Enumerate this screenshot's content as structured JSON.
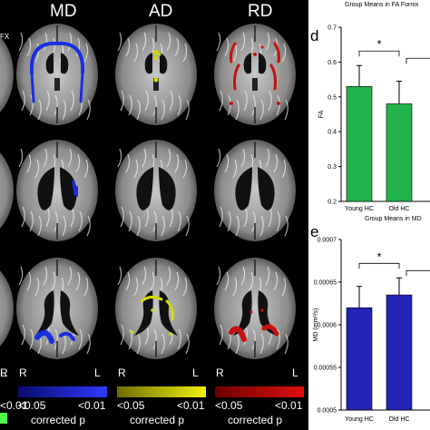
{
  "brain_panel": {
    "columns": [
      "MD",
      "AD",
      "RD"
    ],
    "corner_label": "FX",
    "orientation": {
      "right": "R",
      "left": "L"
    },
    "colorbars": [
      {
        "name": "MD",
        "low": "<0.05",
        "high": "<0.01",
        "from": "#0a0a6e",
        "to": "#2f3cff",
        "label": "corrected p"
      },
      {
        "name": "AD",
        "low": "<0.05",
        "high": "<0.01",
        "from": "#6e6e00",
        "to": "#f0f000",
        "label": "corrected p"
      },
      {
        "name": "RD",
        "low": "<0.05",
        "high": "<0.01",
        "from": "#6e0000",
        "to": "#e01010",
        "label": "corrected p"
      }
    ],
    "left_cut_bar": {
      "high": "<0.01"
    },
    "overlay_colors": {
      "MD": "#1a2fe0",
      "AD": "#d8d800",
      "RD": "#c81010"
    }
  },
  "chart_data": [
    {
      "panel": "d",
      "type": "bar",
      "title": "Group Means in FA Fornix",
      "categories": [
        "Young HC",
        "Old HC"
      ],
      "values": [
        0.53,
        0.48
      ],
      "errors": [
        0.06,
        0.065
      ],
      "bar_color": "#22b34a",
      "ylabel": "FA",
      "ylim": [
        0.2,
        0.7
      ],
      "yticks": [
        "0.2",
        "0.3",
        "0.4",
        "0.5",
        "0.6",
        "0.7"
      ],
      "significance": "*",
      "grid": false
    },
    {
      "panel": "e",
      "type": "bar",
      "title": "Group Means in MD",
      "categories": [
        "Young HC",
        "Old HC"
      ],
      "values": [
        0.00062,
        0.000635
      ],
      "errors": [
        2.5e-05,
        2e-05
      ],
      "bar_color": "#2323b4",
      "ylabel": "MD (mm²/s)",
      "ylim": [
        0.0005,
        0.0007
      ],
      "yticks": [
        "0.0005",
        "0.00055",
        "0.0006",
        "0.00065",
        "0.0007"
      ],
      "significance": "*",
      "grid": false
    }
  ]
}
